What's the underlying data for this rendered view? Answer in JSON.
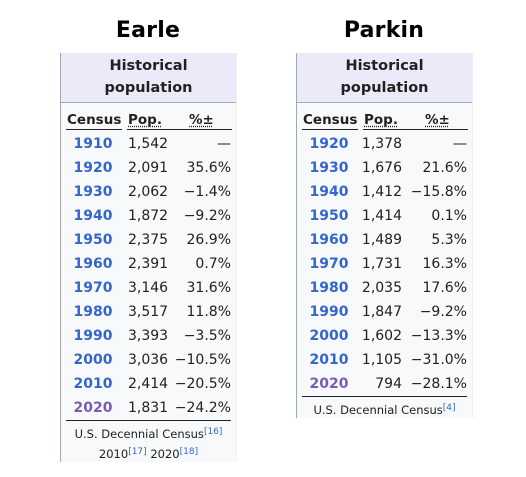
{
  "earle": {
    "title": "Earle",
    "caption_line1": "Historical",
    "caption_line2": "population",
    "headers": {
      "census": "Census",
      "pop": "Pop.",
      "pct": "%±"
    },
    "rows": [
      {
        "year": "1910",
        "pop": "1,542",
        "pct": "—"
      },
      {
        "year": "1920",
        "pop": "2,091",
        "pct": "35.6%"
      },
      {
        "year": "1930",
        "pop": "2,062",
        "pct": "−1.4%"
      },
      {
        "year": "1940",
        "pop": "1,872",
        "pct": "−9.2%"
      },
      {
        "year": "1950",
        "pop": "2,375",
        "pct": "26.9%"
      },
      {
        "year": "1960",
        "pop": "2,391",
        "pct": "0.7%"
      },
      {
        "year": "1970",
        "pop": "3,146",
        "pct": "31.6%"
      },
      {
        "year": "1980",
        "pop": "3,517",
        "pct": "11.8%"
      },
      {
        "year": "1990",
        "pop": "3,393",
        "pct": "−3.5%"
      },
      {
        "year": "2000",
        "pop": "3,036",
        "pct": "−10.5%"
      },
      {
        "year": "2010",
        "pop": "2,414",
        "pct": "−20.5%"
      },
      {
        "year": "2020",
        "pop": "1,831",
        "pct": "−24.2%"
      }
    ],
    "footer_source": "U.S. Decennial Census",
    "footer_ref1": "[16]",
    "footer_year_a": "2010",
    "footer_ref2": "[17]",
    "footer_year_b": "2020",
    "footer_ref3": "[18]"
  },
  "parkin": {
    "title": "Parkin",
    "caption_line1": "Historical",
    "caption_line2": "population",
    "headers": {
      "census": "Census",
      "pop": "Pop.",
      "pct": "%±"
    },
    "rows": [
      {
        "year": "1920",
        "pop": "1,378",
        "pct": "—"
      },
      {
        "year": "1930",
        "pop": "1,676",
        "pct": "21.6%"
      },
      {
        "year": "1940",
        "pop": "1,412",
        "pct": "−15.8%"
      },
      {
        "year": "1950",
        "pop": "1,414",
        "pct": "0.1%"
      },
      {
        "year": "1960",
        "pop": "1,489",
        "pct": "5.3%"
      },
      {
        "year": "1970",
        "pop": "1,731",
        "pct": "16.3%"
      },
      {
        "year": "1980",
        "pop": "2,035",
        "pct": "17.6%"
      },
      {
        "year": "1990",
        "pop": "1,847",
        "pct": "−9.2%"
      },
      {
        "year": "2000",
        "pop": "1,602",
        "pct": "−13.3%"
      },
      {
        "year": "2010",
        "pop": "1,105",
        "pct": "−31.0%"
      },
      {
        "year": "2020",
        "pop": "794",
        "pct": "−28.1%"
      }
    ],
    "footer_source": "U.S. Decennial Census",
    "footer_ref1": "[4]"
  },
  "colors": {
    "link": "#3366cc",
    "visited_link": "#795cb2",
    "caption_bg": "#eaeaf8",
    "panel_bg": "#f8f9fa"
  }
}
